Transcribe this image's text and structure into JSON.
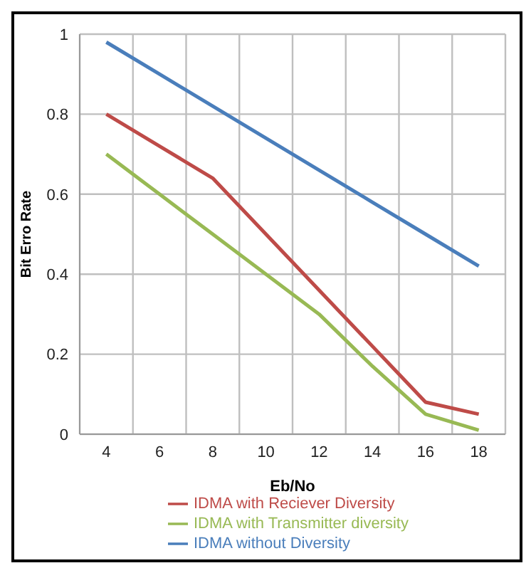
{
  "chart_data": {
    "type": "line",
    "xlabel": "Eb/No",
    "ylabel": "Bit Erro Rate",
    "categories": [
      "4",
      "6",
      "8",
      "10",
      "12",
      "14",
      "16",
      "18"
    ],
    "series": [
      {
        "name": "IDMA without Diversity",
        "color": "#4a7ebb",
        "values": [
          0.98,
          0.9,
          0.82,
          0.74,
          0.66,
          0.58,
          0.5,
          0.42
        ]
      },
      {
        "name": "IDMA with Reciever Diversity",
        "color": "#be4b48",
        "values": [
          0.8,
          0.72,
          0.64,
          0.5,
          0.36,
          0.22,
          0.08,
          0.05
        ]
      },
      {
        "name": "IDMA with Transmitter diversity",
        "color": "#98b954",
        "values": [
          0.7,
          0.6,
          0.5,
          0.4,
          0.3,
          0.17,
          0.05,
          0.01
        ]
      }
    ],
    "ylim": [
      0,
      1
    ],
    "yticks": [
      0,
      0.2,
      0.4,
      0.6,
      0.8,
      1
    ],
    "grid": true,
    "legend": "bottom",
    "marker": "none",
    "line_style": "solid"
  }
}
